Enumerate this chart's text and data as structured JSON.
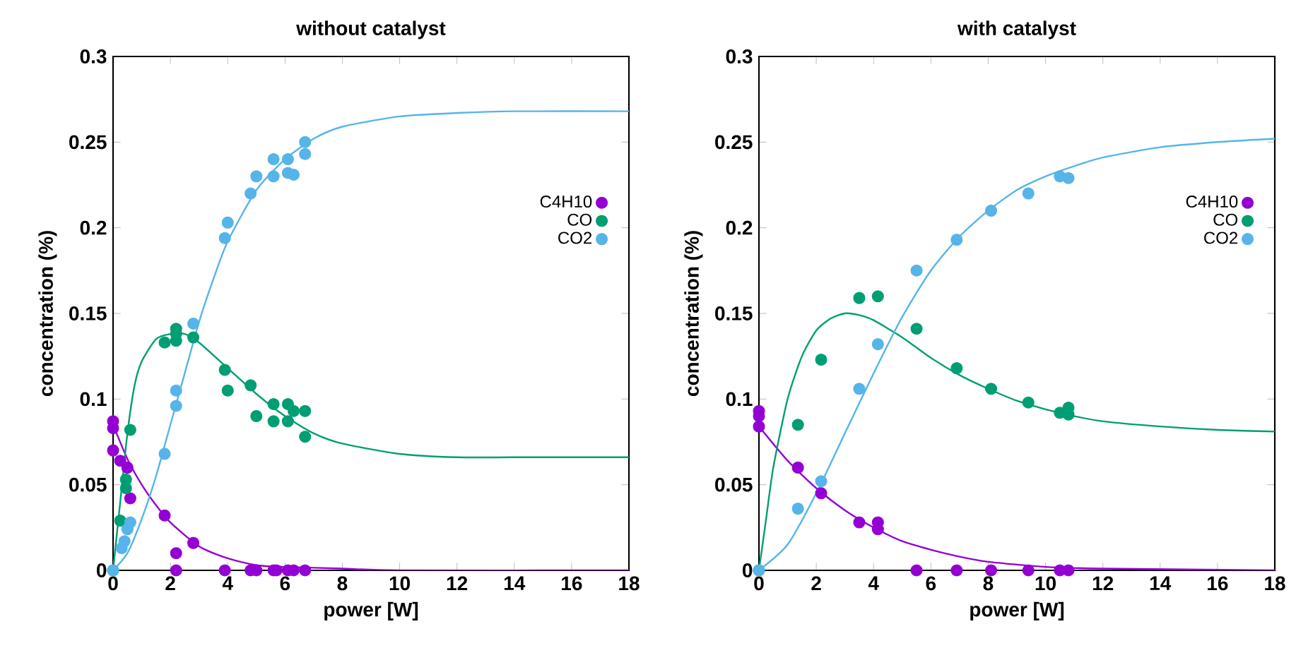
{
  "chart_data": [
    {
      "type": "scatter",
      "title": "without catalyst",
      "xlabel": "power [W]",
      "ylabel": "concentration (%)",
      "xlim": [
        0,
        18
      ],
      "ylim": [
        0,
        0.3
      ],
      "xticks": [
        0,
        2,
        4,
        6,
        8,
        10,
        12,
        14,
        16,
        18
      ],
      "yticks": [
        0,
        0.05,
        0.1,
        0.15,
        0.2,
        0.25,
        0.3
      ],
      "legend": "right",
      "series": [
        {
          "name": "C4H10",
          "marker": "circle",
          "color": "#9400d3",
          "x": [
            0,
            0,
            0,
            0.25,
            0.5,
            0.6,
            1.8,
            2.2,
            2.2,
            2.8,
            3.9,
            4.8,
            5.0,
            5.6,
            5.7,
            6.1,
            6.3,
            6.7
          ],
          "values": [
            0.087,
            0.083,
            0.07,
            0.064,
            0.06,
            0.042,
            0.032,
            0.01,
            0,
            0.016,
            0,
            0,
            0,
            0,
            0,
            0,
            0,
            0
          ]
        },
        {
          "name": "CO",
          "marker": "circle",
          "color": "#009e73",
          "x": [
            0,
            0.25,
            0.45,
            0.45,
            0.6,
            1.8,
            2.2,
            2.2,
            2.2,
            2.8,
            3.9,
            4.0,
            4.8,
            5.0,
            5.6,
            5.6,
            6.1,
            6.1,
            6.3,
            6.7,
            6.7
          ],
          "values": [
            0,
            0.029,
            0.048,
            0.053,
            0.082,
            0.133,
            0.141,
            0.134,
            0.138,
            0.136,
            0.117,
            0.105,
            0.108,
            0.09,
            0.097,
            0.087,
            0.097,
            0.087,
            0.093,
            0.093,
            0.078
          ]
        },
        {
          "name": "CO2",
          "marker": "circle",
          "color": "#56b4e9",
          "x": [
            0,
            0.3,
            0.4,
            0.5,
            0.6,
            1.8,
            2.2,
            2.2,
            2.8,
            3.9,
            4.0,
            4.8,
            5.0,
            5.6,
            5.6,
            6.1,
            6.1,
            6.3,
            6.7,
            6.7
          ],
          "values": [
            0,
            0.013,
            0.017,
            0.024,
            0.028,
            0.068,
            0.096,
            0.105,
            0.144,
            0.194,
            0.203,
            0.22,
            0.23,
            0.23,
            0.24,
            0.232,
            0.24,
            0.231,
            0.243,
            0.25
          ]
        },
        {
          "type": "line",
          "color": "#9400d3",
          "x": [
            0,
            0.5,
            1,
            1.5,
            2,
            3,
            4,
            5,
            6,
            8,
            10,
            18
          ],
          "values": [
            0.085,
            0.065,
            0.05,
            0.038,
            0.028,
            0.014,
            0.007,
            0.003,
            0.002,
            0.001,
            0,
            0
          ]
        },
        {
          "type": "line",
          "color": "#009e73",
          "x": [
            0,
            0.25,
            0.5,
            0.75,
            1,
            1.5,
            2,
            2.5,
            3,
            4,
            5,
            6,
            7,
            8,
            10,
            12,
            14,
            18
          ],
          "values": [
            0,
            0.04,
            0.08,
            0.108,
            0.122,
            0.135,
            0.138,
            0.138,
            0.133,
            0.118,
            0.103,
            0.09,
            0.08,
            0.074,
            0.068,
            0.066,
            0.066,
            0.066
          ]
        },
        {
          "type": "line",
          "color": "#56b4e9",
          "x": [
            0,
            0.5,
            1,
            1.5,
            2,
            2.5,
            3,
            3.5,
            4,
            5,
            6,
            7,
            8,
            10,
            12,
            14,
            18
          ],
          "values": [
            0,
            0.01,
            0.03,
            0.055,
            0.085,
            0.115,
            0.145,
            0.17,
            0.192,
            0.222,
            0.24,
            0.252,
            0.259,
            0.265,
            0.267,
            0.268,
            0.268
          ]
        }
      ]
    },
    {
      "type": "scatter",
      "title": "with catalyst",
      "xlabel": "power [W]",
      "ylabel": "concentration (%)",
      "xlim": [
        0,
        18
      ],
      "ylim": [
        0,
        0.3
      ],
      "xticks": [
        0,
        2,
        4,
        6,
        8,
        10,
        12,
        14,
        16,
        18
      ],
      "yticks": [
        0,
        0.05,
        0.1,
        0.15,
        0.2,
        0.25,
        0.3
      ],
      "legend": "right",
      "series": [
        {
          "name": "C4H10",
          "marker": "circle",
          "color": "#9400d3",
          "x": [
            0,
            0,
            0,
            1.36,
            2.17,
            3.5,
            4.15,
            4.15,
            5.5,
            6.9,
            8.1,
            9.4,
            10.5,
            10.8
          ],
          "values": [
            0.093,
            0.09,
            0.084,
            0.06,
            0.045,
            0.028,
            0.028,
            0.024,
            0,
            0,
            0,
            0,
            0,
            0
          ]
        },
        {
          "name": "CO",
          "marker": "circle",
          "color": "#009e73",
          "x": [
            0,
            1.36,
            2.17,
            3.5,
            4.15,
            5.5,
            6.9,
            8.1,
            9.4,
            10.5,
            10.8,
            10.8
          ],
          "values": [
            0,
            0.085,
            0.123,
            0.159,
            0.16,
            0.141,
            0.118,
            0.106,
            0.098,
            0.092,
            0.091,
            0.095
          ]
        },
        {
          "name": "CO2",
          "marker": "circle",
          "color": "#56b4e9",
          "x": [
            0,
            1.36,
            2.17,
            3.5,
            4.15,
            5.5,
            6.9,
            8.1,
            9.4,
            10.5,
            10.8
          ],
          "values": [
            0,
            0.036,
            0.052,
            0.106,
            0.132,
            0.175,
            0.193,
            0.21,
            0.22,
            0.23,
            0.229
          ]
        },
        {
          "type": "line",
          "color": "#9400d3",
          "x": [
            0,
            1,
            2,
            3,
            4,
            5,
            6,
            7,
            8,
            10,
            12,
            18
          ],
          "values": [
            0.084,
            0.064,
            0.048,
            0.035,
            0.025,
            0.017,
            0.012,
            0.008,
            0.005,
            0.002,
            0.001,
            0
          ]
        },
        {
          "type": "line",
          "color": "#009e73",
          "x": [
            0,
            0.25,
            0.5,
            1,
            1.5,
            2,
            2.5,
            3,
            3.5,
            4,
            5,
            6,
            7,
            8,
            9,
            10,
            11,
            12,
            14,
            16,
            18
          ],
          "values": [
            0,
            0.03,
            0.06,
            0.1,
            0.125,
            0.14,
            0.147,
            0.15,
            0.149,
            0.146,
            0.136,
            0.124,
            0.114,
            0.106,
            0.099,
            0.094,
            0.09,
            0.087,
            0.084,
            0.082,
            0.081
          ]
        },
        {
          "type": "line",
          "color": "#56b4e9",
          "x": [
            0,
            1,
            2,
            3,
            4,
            5,
            6,
            7,
            8,
            9,
            10,
            11,
            12,
            14,
            16,
            18
          ],
          "values": [
            0,
            0.015,
            0.045,
            0.08,
            0.115,
            0.148,
            0.175,
            0.195,
            0.21,
            0.222,
            0.23,
            0.236,
            0.241,
            0.247,
            0.25,
            0.252
          ]
        }
      ]
    }
  ]
}
